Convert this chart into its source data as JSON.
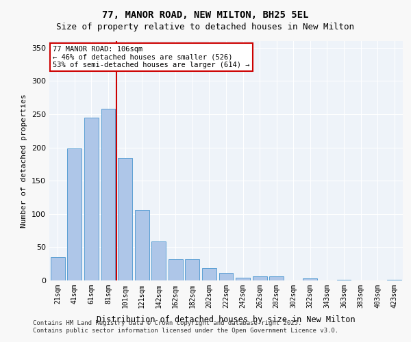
{
  "title1": "77, MANOR ROAD, NEW MILTON, BH25 5EL",
  "title2": "Size of property relative to detached houses in New Milton",
  "xlabel": "Distribution of detached houses by size in New Milton",
  "ylabel": "Number of detached properties",
  "bar_color": "#aec6e8",
  "bar_edge_color": "#5a9fd4",
  "background_color": "#eef3f9",
  "grid_color": "#ffffff",
  "categories": [
    "21sqm",
    "41sqm",
    "61sqm",
    "81sqm",
    "101sqm",
    "121sqm",
    "142sqm",
    "162sqm",
    "182sqm",
    "202sqm",
    "222sqm",
    "242sqm",
    "262sqm",
    "282sqm",
    "302sqm",
    "322sqm",
    "343sqm",
    "363sqm",
    "383sqm",
    "403sqm",
    "423sqm"
  ],
  "values": [
    35,
    199,
    245,
    258,
    184,
    106,
    59,
    32,
    32,
    19,
    11,
    4,
    6,
    6,
    0,
    3,
    0,
    1,
    0,
    0,
    1
  ],
  "vline_x": 3.5,
  "vline_color": "#cc0000",
  "annotation_title": "77 MANOR ROAD: 106sqm",
  "annotation_line1": "← 46% of detached houses are smaller (526)",
  "annotation_line2": "53% of semi-detached houses are larger (614) →",
  "annotation_box_color": "#ffffff",
  "annotation_box_edge": "#cc0000",
  "ylim": [
    0,
    360
  ],
  "yticks": [
    0,
    50,
    100,
    150,
    200,
    250,
    300,
    350
  ],
  "footer1": "Contains HM Land Registry data © Crown copyright and database right 2025.",
  "footer2": "Contains public sector information licensed under the Open Government Licence v3.0."
}
